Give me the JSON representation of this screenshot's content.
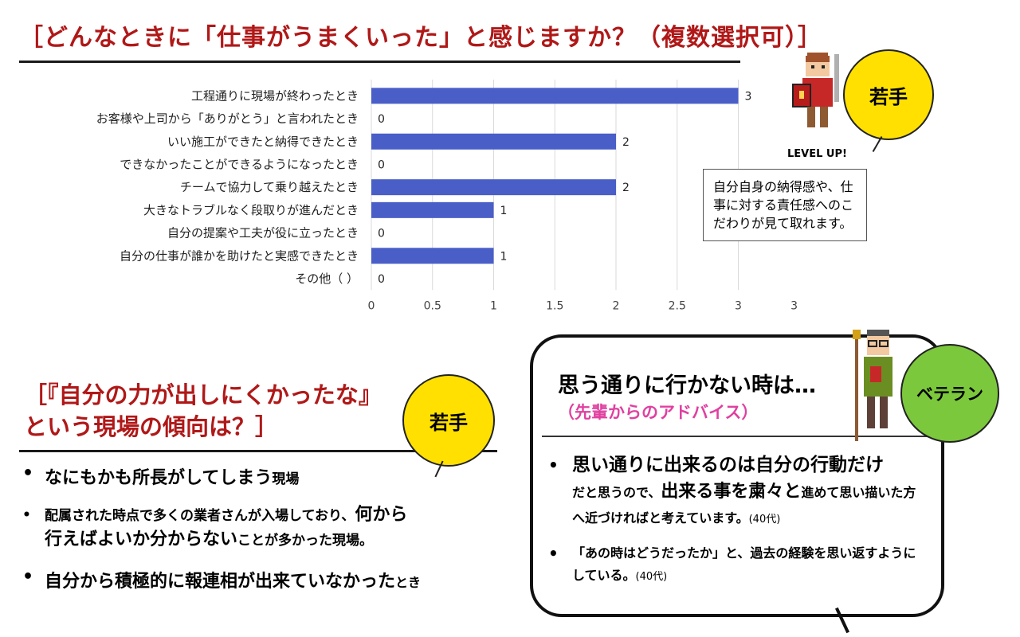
{
  "header": {
    "title": "［どんなときに「仕事がうまくいった」と感じますか？（複数選択可）］"
  },
  "chart_data": {
    "type": "bar",
    "orientation": "horizontal",
    "categories": [
      "工程通りに現場が終わったとき",
      "お客様や上司から「ありがとう」と言われたとき",
      "いい施工ができたと納得できたとき",
      "できなかったことができるようになったとき",
      "チームで協力して乗り越えたとき",
      "大きなトラブルなく段取りが進んだとき",
      "自分の提案や工夫が役に立ったとき",
      "自分の仕事が誰かを助けたと実感できたとき",
      "その他（ ）"
    ],
    "values": [
      3,
      0,
      2,
      0,
      2,
      1,
      0,
      1,
      0
    ],
    "xlim": [
      0,
      3.5
    ],
    "ticks": [
      "0",
      "0.5",
      "1",
      "1.5",
      "2",
      "2.5",
      "3",
      "3.5"
    ],
    "grid": true,
    "bar_color": "#4a5ec8"
  },
  "badge_young": "若手",
  "level_up": "LEVEL UP!",
  "note": "自分自身の納得感や、仕事に対する責任感へのこだわりが見て取れます。",
  "section2": {
    "title_line1": "［『自分の力が出しにくかったな』",
    "title_line2": "という現場の傾向は？］",
    "badge": "若手",
    "items": [
      {
        "a": "なにもかも所長がしてしまう",
        "b": "現場"
      },
      {
        "a": "配属された時点で多くの業者さんが入場しており、",
        "b": "何から",
        "c": "行えばよいか分からない",
        "d": "ことが多かった現場。"
      },
      {
        "a": "自分から積極的に報連相が出来ていなかった",
        "b": "とき"
      }
    ]
  },
  "advice": {
    "title": "思う通りに行かない時は…",
    "subtitle": "（先輩からのアドバイス）",
    "badge": "ベテラン",
    "items": [
      {
        "a": "思い通りに出来るのは自分の行動だけ",
        "b": "だと思うので、",
        "c": "出来る事を粛々と",
        "d": "進めて思い描いた方へ近づければと考えています。",
        "e": "(40代)"
      },
      {
        "a": "「あの時はどうだったか」と、過去の経験を思い返すようにしている。",
        "e": "(40代)"
      }
    ]
  },
  "colors": {
    "title_red": "#b01818",
    "badge_yellow": "#ffe000",
    "badge_green": "#7cc83c",
    "accent_pink": "#e040a0"
  }
}
